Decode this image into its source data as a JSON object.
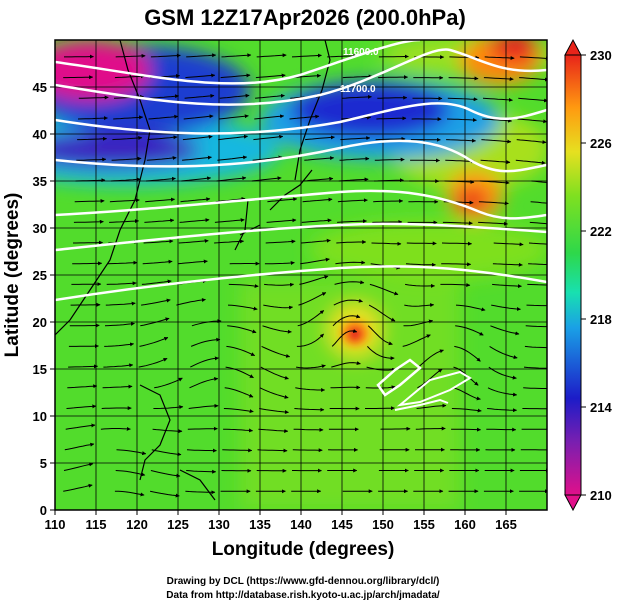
{
  "chart_data": {
    "type": "heatmap",
    "title": "GSM 12Z17Apr2026 (200.0hPa)",
    "xlabel": "Longitude (degrees)",
    "ylabel": "Latitude (degrees)",
    "xlim": [
      110,
      170
    ],
    "ylim": [
      0,
      50
    ],
    "x_ticks": [
      110,
      115,
      120,
      125,
      130,
      135,
      140,
      145,
      150,
      155,
      160,
      165
    ],
    "y_ticks": [
      0,
      5,
      10,
      15,
      20,
      25,
      30,
      35,
      40,
      45
    ],
    "colorbar": {
      "min": 210,
      "max": 230,
      "tick_labels": [
        "230",
        "226",
        "222",
        "218",
        "214",
        "210"
      ],
      "colors": [
        "#e0108a",
        "#7a1fb0",
        "#1c1cc8",
        "#1aa0e6",
        "#18e0b0",
        "#2ed84a",
        "#7fe020",
        "#e6e020",
        "#ff9a10",
        "#e8241a"
      ]
    },
    "contour_labels": [
      "11600.0",
      "11700.0"
    ],
    "features": [
      {
        "name": "warm core",
        "lon": 146,
        "lat": 20.5,
        "value": 229
      },
      {
        "name": "warm region",
        "lon": 161,
        "lat": 36,
        "value": 228
      },
      {
        "name": "cold trough",
        "lon": 117,
        "lat": 46,
        "value": 211
      }
    ]
  },
  "credits": {
    "line1": "Drawing by DCL (https://www.gfd-dennou.org/library/dcl/)",
    "line2": "Data from http://database.rish.kyoto-u.ac.jp/arch/jmadata/"
  }
}
